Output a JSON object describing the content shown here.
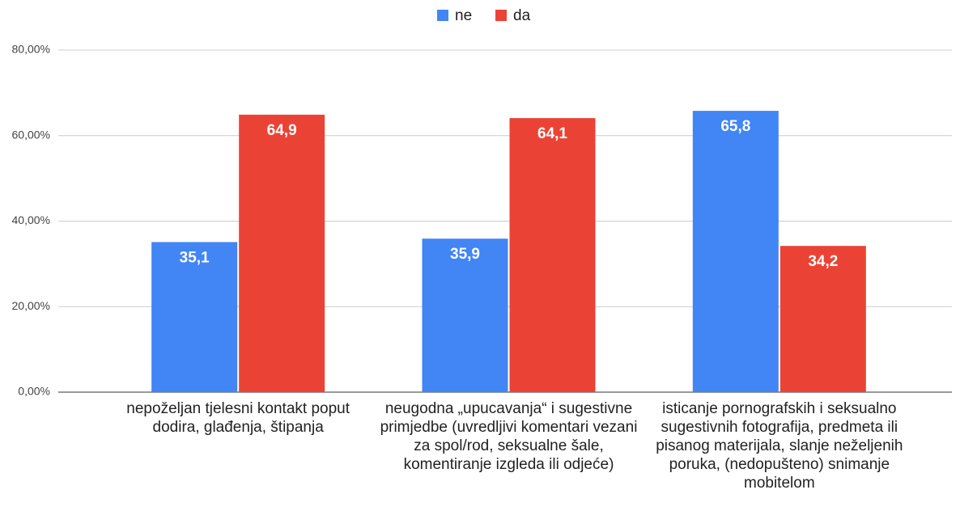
{
  "chart_data": {
    "type": "bar",
    "categories": [
      "nepoželjan tjelesni kontakt poput dodira, glađenja, štipanja",
      "neugodna „upucavanja“ i sugestivne primjedbe (uvredljivi komentari vezani za spol/rod, seksualne šale, komentiranje izgleda ili odjeće)",
      "isticanje pornografskih i seksualno sugestivnih fotografija, predmeta ili pisanog materijala, slanje neželjenih poruka, (nedopušteno) snimanje mobitelom"
    ],
    "series": [
      {
        "name": "ne",
        "color": "#4285f4",
        "values": [
          35.1,
          35.9,
          65.8
        ],
        "value_labels": [
          "35,1",
          "35,9",
          "65,8"
        ]
      },
      {
        "name": "da",
        "color": "#ea4335",
        "values": [
          64.9,
          64.1,
          34.2
        ],
        "value_labels": [
          "64,9",
          "64,1",
          "34,2"
        ]
      }
    ],
    "ylim": [
      0,
      80
    ],
    "yticks": [
      {
        "value": 0,
        "label": "0,00%"
      },
      {
        "value": 20,
        "label": "20,00%"
      },
      {
        "value": 40,
        "label": "40,00%"
      },
      {
        "value": 60,
        "label": "60,00%"
      },
      {
        "value": 80,
        "label": "80,00%"
      }
    ],
    "grid": true,
    "legend": "top"
  }
}
